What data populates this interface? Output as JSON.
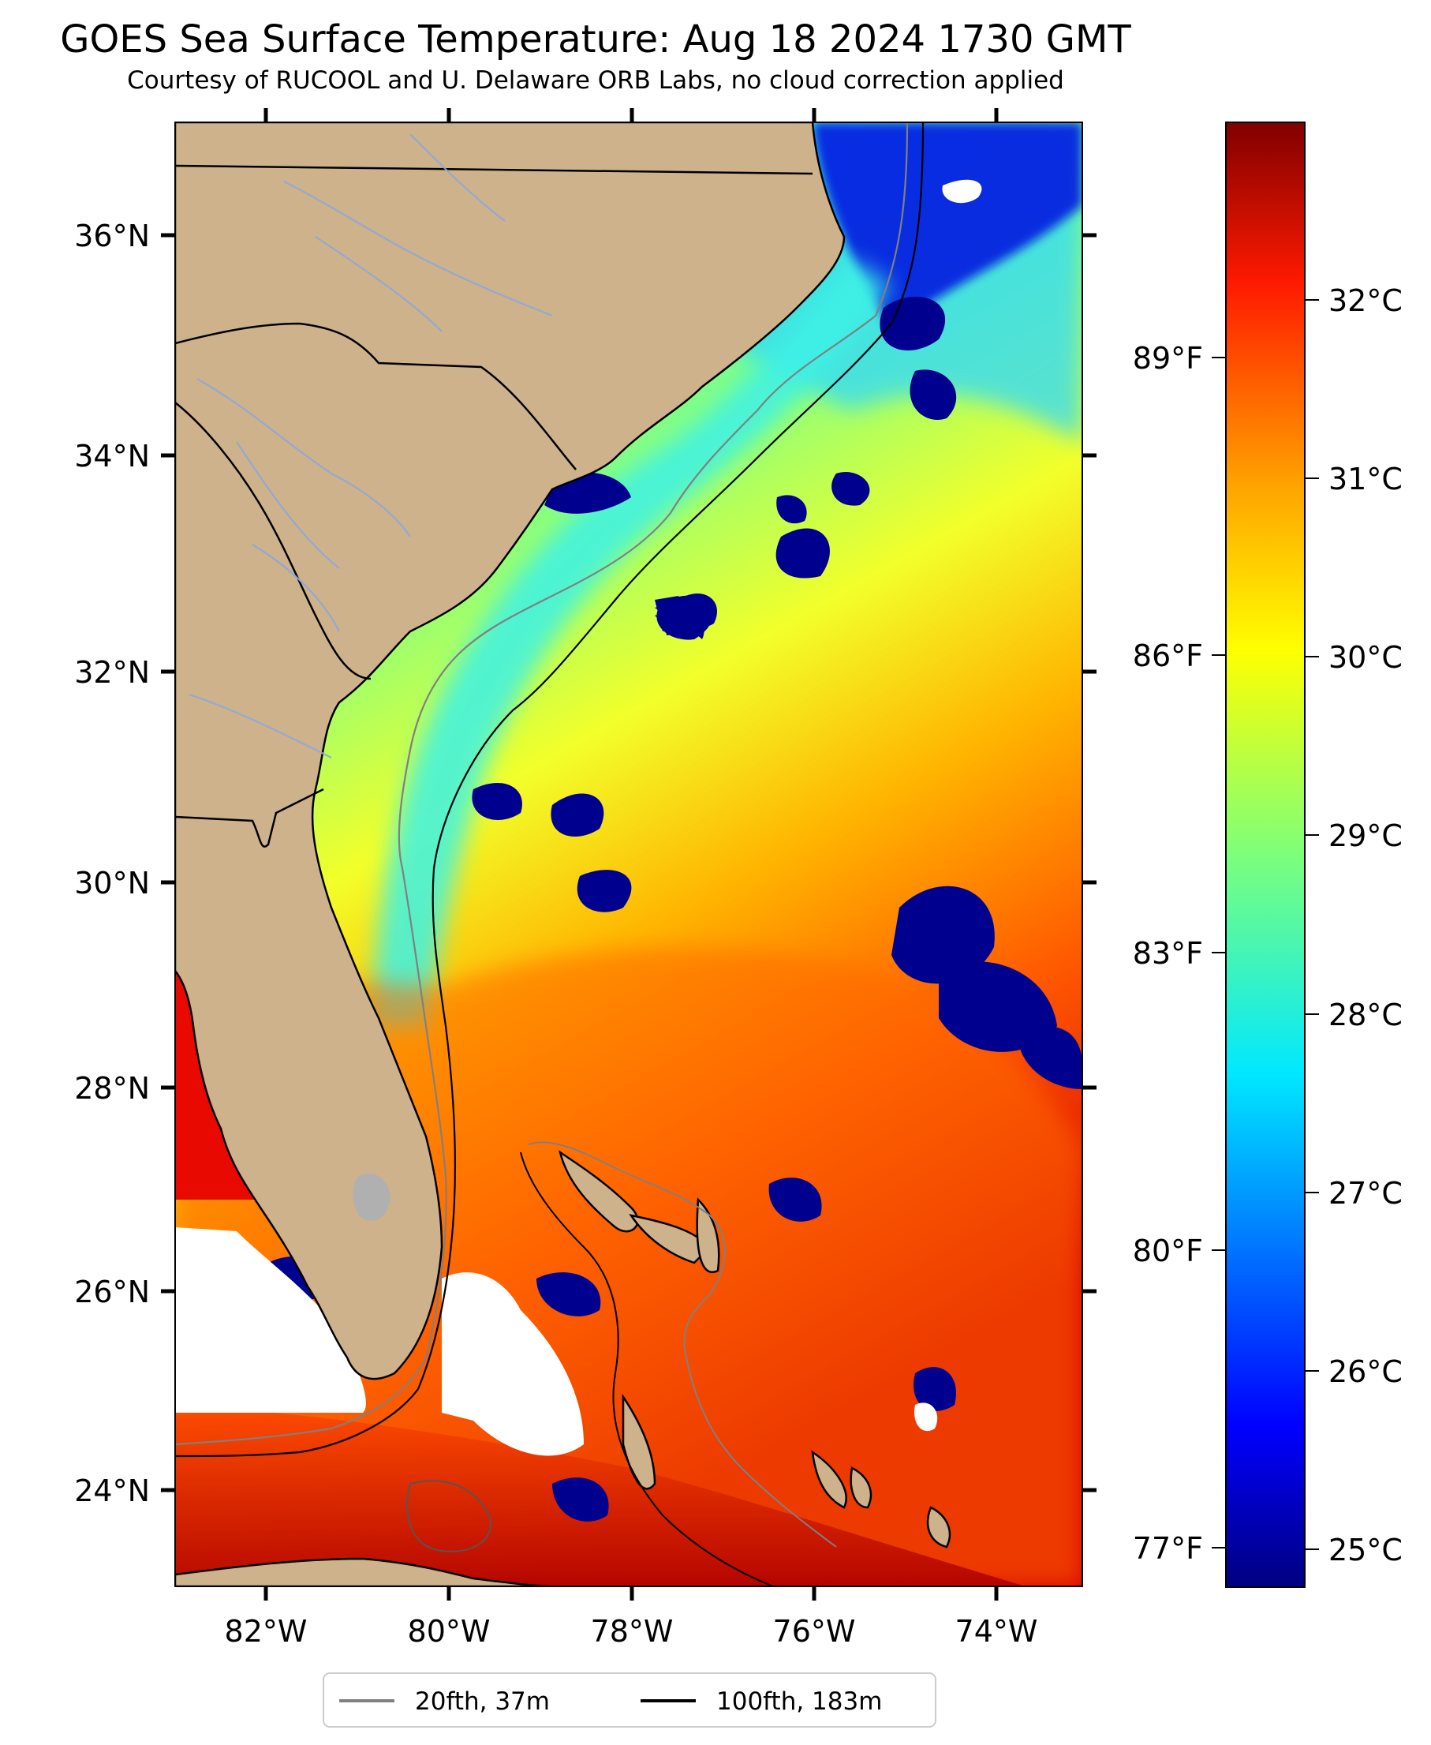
{
  "title": "GOES Sea Surface Temperature: Aug 18 2024 1730 GMT",
  "subtitle": "Courtesy of RUCOOL and U. Delaware ORB Labs, no cloud correction applied",
  "map": {
    "latitude_labels": [
      "36°N",
      "34°N",
      "32°N",
      "30°N",
      "28°N",
      "26°N",
      "24°N"
    ],
    "longitude_labels": [
      "82°W",
      "80°W",
      "78°W",
      "76°W",
      "74°W"
    ],
    "fahrenheit_labels": [
      "89°F",
      "86°F",
      "83°F",
      "80°F",
      "77°F"
    ],
    "land_color": "#cdb28b",
    "cloud_mask_color": "#ffffff",
    "land_features": [
      "coastline",
      "state boundaries",
      "rivers",
      "Bahamas islands",
      "Cuba",
      "Florida Keys"
    ]
  },
  "colorbar": {
    "colormap": "jet",
    "celsius_labels": [
      "32°C",
      "31°C",
      "30°C",
      "29°C",
      "28°C",
      "27°C",
      "26°C",
      "25°C"
    ],
    "range_celsius": [
      24.8,
      33.0
    ]
  },
  "legend": {
    "location": "bottom-center",
    "items": [
      {
        "label": "20fth, 37m",
        "color": "#808080"
      },
      {
        "label": "100fth, 183m",
        "color": "#000000"
      }
    ]
  }
}
